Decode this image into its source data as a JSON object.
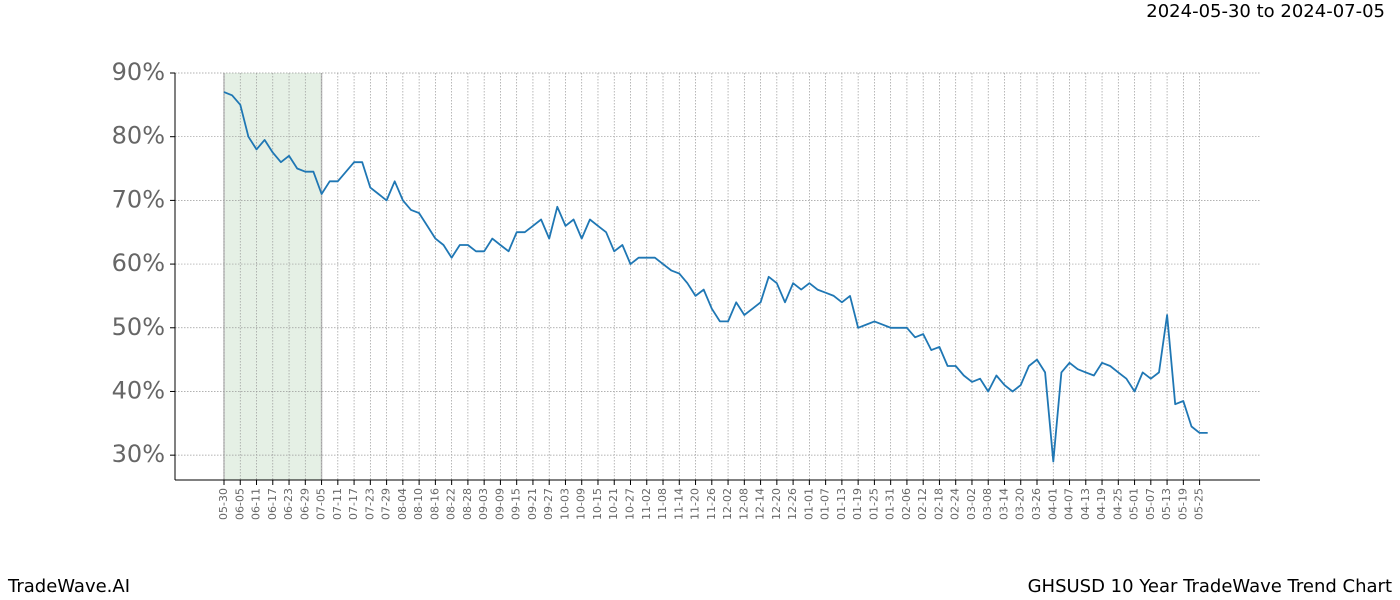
{
  "chart_data": {
    "type": "line",
    "date_range": "2024-05-30 to 2024-07-05",
    "brand": "TradeWave.AI",
    "title": "GHSUSD 10 Year TradeWave Trend Chart",
    "categories": [
      "05-30",
      null,
      "06-05",
      null,
      "06-11",
      null,
      "06-17",
      null,
      "06-23",
      null,
      "06-29",
      null,
      "07-05",
      null,
      "07-11",
      null,
      "07-17",
      null,
      "07-23",
      null,
      "07-29",
      null,
      "08-04",
      null,
      "08-10",
      null,
      "08-16",
      null,
      "08-22",
      null,
      "08-28",
      null,
      "09-03",
      null,
      "09-09",
      null,
      "09-15",
      null,
      "09-21",
      null,
      "09-27",
      null,
      "10-03",
      null,
      "10-09",
      null,
      "10-15",
      null,
      "10-21",
      null,
      "10-27",
      null,
      "11-02",
      null,
      "11-08",
      null,
      "11-14",
      null,
      "11-20",
      null,
      "11-26",
      null,
      "12-02",
      null,
      "12-08",
      null,
      "12-14",
      null,
      "12-20",
      null,
      "12-26",
      null,
      "01-01",
      null,
      "01-07",
      null,
      "01-13",
      null,
      "01-19",
      null,
      "01-25",
      null,
      "01-31",
      null,
      "02-06",
      null,
      "02-12",
      null,
      "02-18",
      null,
      "02-24",
      null,
      "03-02",
      null,
      "03-08",
      null,
      "03-14",
      null,
      "03-20",
      null,
      "03-26",
      null,
      "04-01",
      null,
      "04-07",
      null,
      "04-13",
      null,
      "04-19",
      null,
      "04-25",
      null,
      "05-01",
      null,
      "05-07",
      null,
      "05-13",
      null,
      "05-19",
      null,
      "05-25",
      null
    ],
    "series": [
      {
        "name": "GHSUSD",
        "color": "#1f77b4",
        "values": [
          87,
          86.5,
          85,
          80,
          78,
          79.5,
          77.5,
          76,
          77,
          75,
          74.5,
          74.5,
          71,
          73,
          73,
          74.5,
          76,
          76,
          72,
          71,
          70,
          73,
          70,
          68.5,
          68,
          66,
          64,
          63,
          61,
          63,
          63,
          62,
          62,
          64,
          63,
          62,
          65,
          65,
          66,
          67,
          64,
          69,
          66,
          67,
          64,
          67,
          66,
          65,
          62,
          63,
          60,
          61,
          61,
          61,
          60,
          59,
          58.5,
          57,
          55,
          56,
          53,
          51,
          51,
          54,
          52,
          53,
          54,
          58,
          57,
          54,
          57,
          56,
          57,
          56,
          55.5,
          55,
          54,
          55,
          50,
          50.5,
          51,
          50.5,
          50,
          50,
          50,
          48.5,
          49,
          46.5,
          47,
          44,
          44,
          42.5,
          41.5,
          42,
          40,
          42.5,
          41,
          40,
          41,
          44,
          45,
          43,
          29,
          43,
          44.5,
          43.5,
          43,
          42.5,
          44.5,
          44,
          43,
          42,
          40,
          43,
          42,
          43,
          52,
          38,
          38.5,
          34.5,
          33.5,
          33.5
        ]
      }
    ],
    "highlight": [
      "05-30",
      "07-05"
    ],
    "highlight_color": "#e5f0e5",
    "ylim": [
      26.1,
      90
    ],
    "yticks": [
      {
        "value": 30,
        "label": "30%"
      },
      {
        "value": 40,
        "label": "40%"
      },
      {
        "value": 50,
        "label": "50%"
      },
      {
        "value": 60,
        "label": "60%"
      },
      {
        "value": 70,
        "label": "70%"
      },
      {
        "value": 80,
        "label": "80%"
      },
      {
        "value": 90,
        "label": "90%"
      }
    ],
    "grid": true
  }
}
